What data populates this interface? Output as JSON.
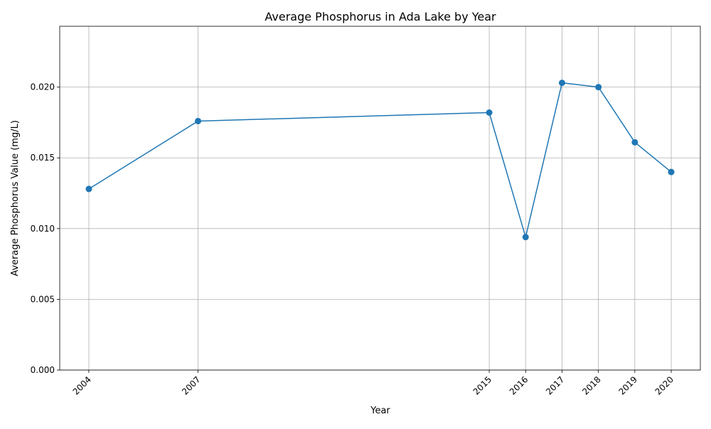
{
  "chart_data": {
    "type": "line",
    "title": "Average Phosphorus in Ada Lake by Year",
    "xlabel": "Year",
    "ylabel": "Average Phosphorus Value (mg/L)",
    "x": [
      2004,
      2007,
      2015,
      2016,
      2017,
      2018,
      2019,
      2020
    ],
    "x_tick_labels": [
      "2004",
      "2007",
      "2015",
      "2016",
      "2017",
      "2018",
      "2019",
      "2020"
    ],
    "series": [
      {
        "values": [
          0.0128,
          0.0176,
          0.0182,
          0.0094,
          0.0203,
          0.02,
          0.0161,
          0.014
        ],
        "color": "#1f77b4",
        "marker": "circle"
      }
    ],
    "xlim": [
      2003.2,
      2020.8
    ],
    "ylim": [
      0,
      0.0243
    ],
    "y_ticks": [
      0.0,
      0.005,
      0.01,
      0.015,
      0.02
    ],
    "y_tick_labels": [
      "0.000",
      "0.005",
      "0.010",
      "0.015",
      "0.020"
    ],
    "grid": true,
    "legend": "none",
    "colors": {
      "line": "#1f77b4",
      "grid": "#b0b0b0",
      "axes": "#000000"
    }
  }
}
